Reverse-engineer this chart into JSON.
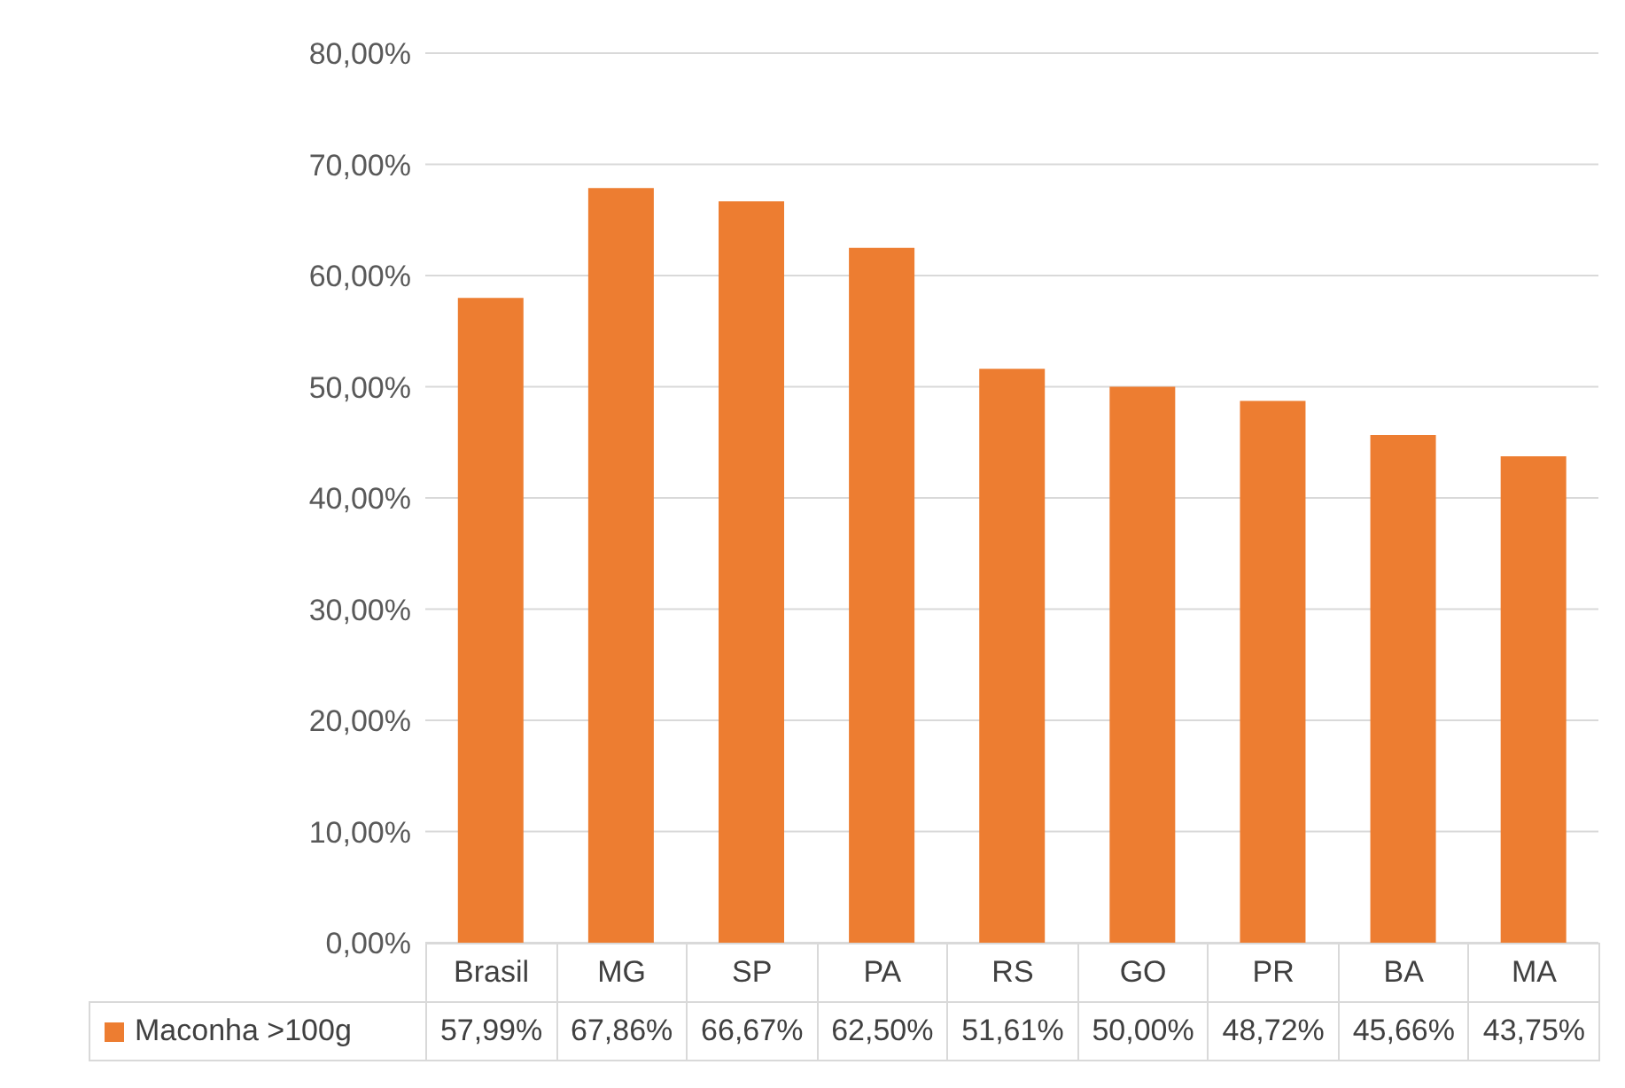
{
  "chart_data": {
    "type": "bar",
    "categories": [
      "Brasil",
      "MG",
      "SP",
      "PA",
      "RS",
      "GO",
      "PR",
      "BA",
      "MA"
    ],
    "series": [
      {
        "name": "Maconha >100g",
        "color": "#ed7d31",
        "values": [
          57.99,
          67.86,
          66.67,
          62.5,
          51.61,
          50,
          48.72,
          45.66,
          43.75
        ],
        "value_labels": [
          "57,99%",
          "67,86%",
          "66,67%",
          "62,50%",
          "51,61%",
          "50,00%",
          "48,72%",
          "45,66%",
          "43,75%"
        ]
      }
    ],
    "ylim": [
      0,
      80
    ],
    "yticks": [
      {
        "value": 0,
        "label": "0,00%"
      },
      {
        "value": 10,
        "label": "10,00%"
      },
      {
        "value": 20,
        "label": "20,00%"
      },
      {
        "value": 30,
        "label": "30,00%"
      },
      {
        "value": 40,
        "label": "40,00%"
      },
      {
        "value": 50,
        "label": "50,00%"
      },
      {
        "value": 60,
        "label": "60,00%"
      },
      {
        "value": 70,
        "label": "70,00%"
      },
      {
        "value": 80,
        "label": "80,00%"
      }
    ],
    "grid": "y",
    "legend": "bottom"
  }
}
